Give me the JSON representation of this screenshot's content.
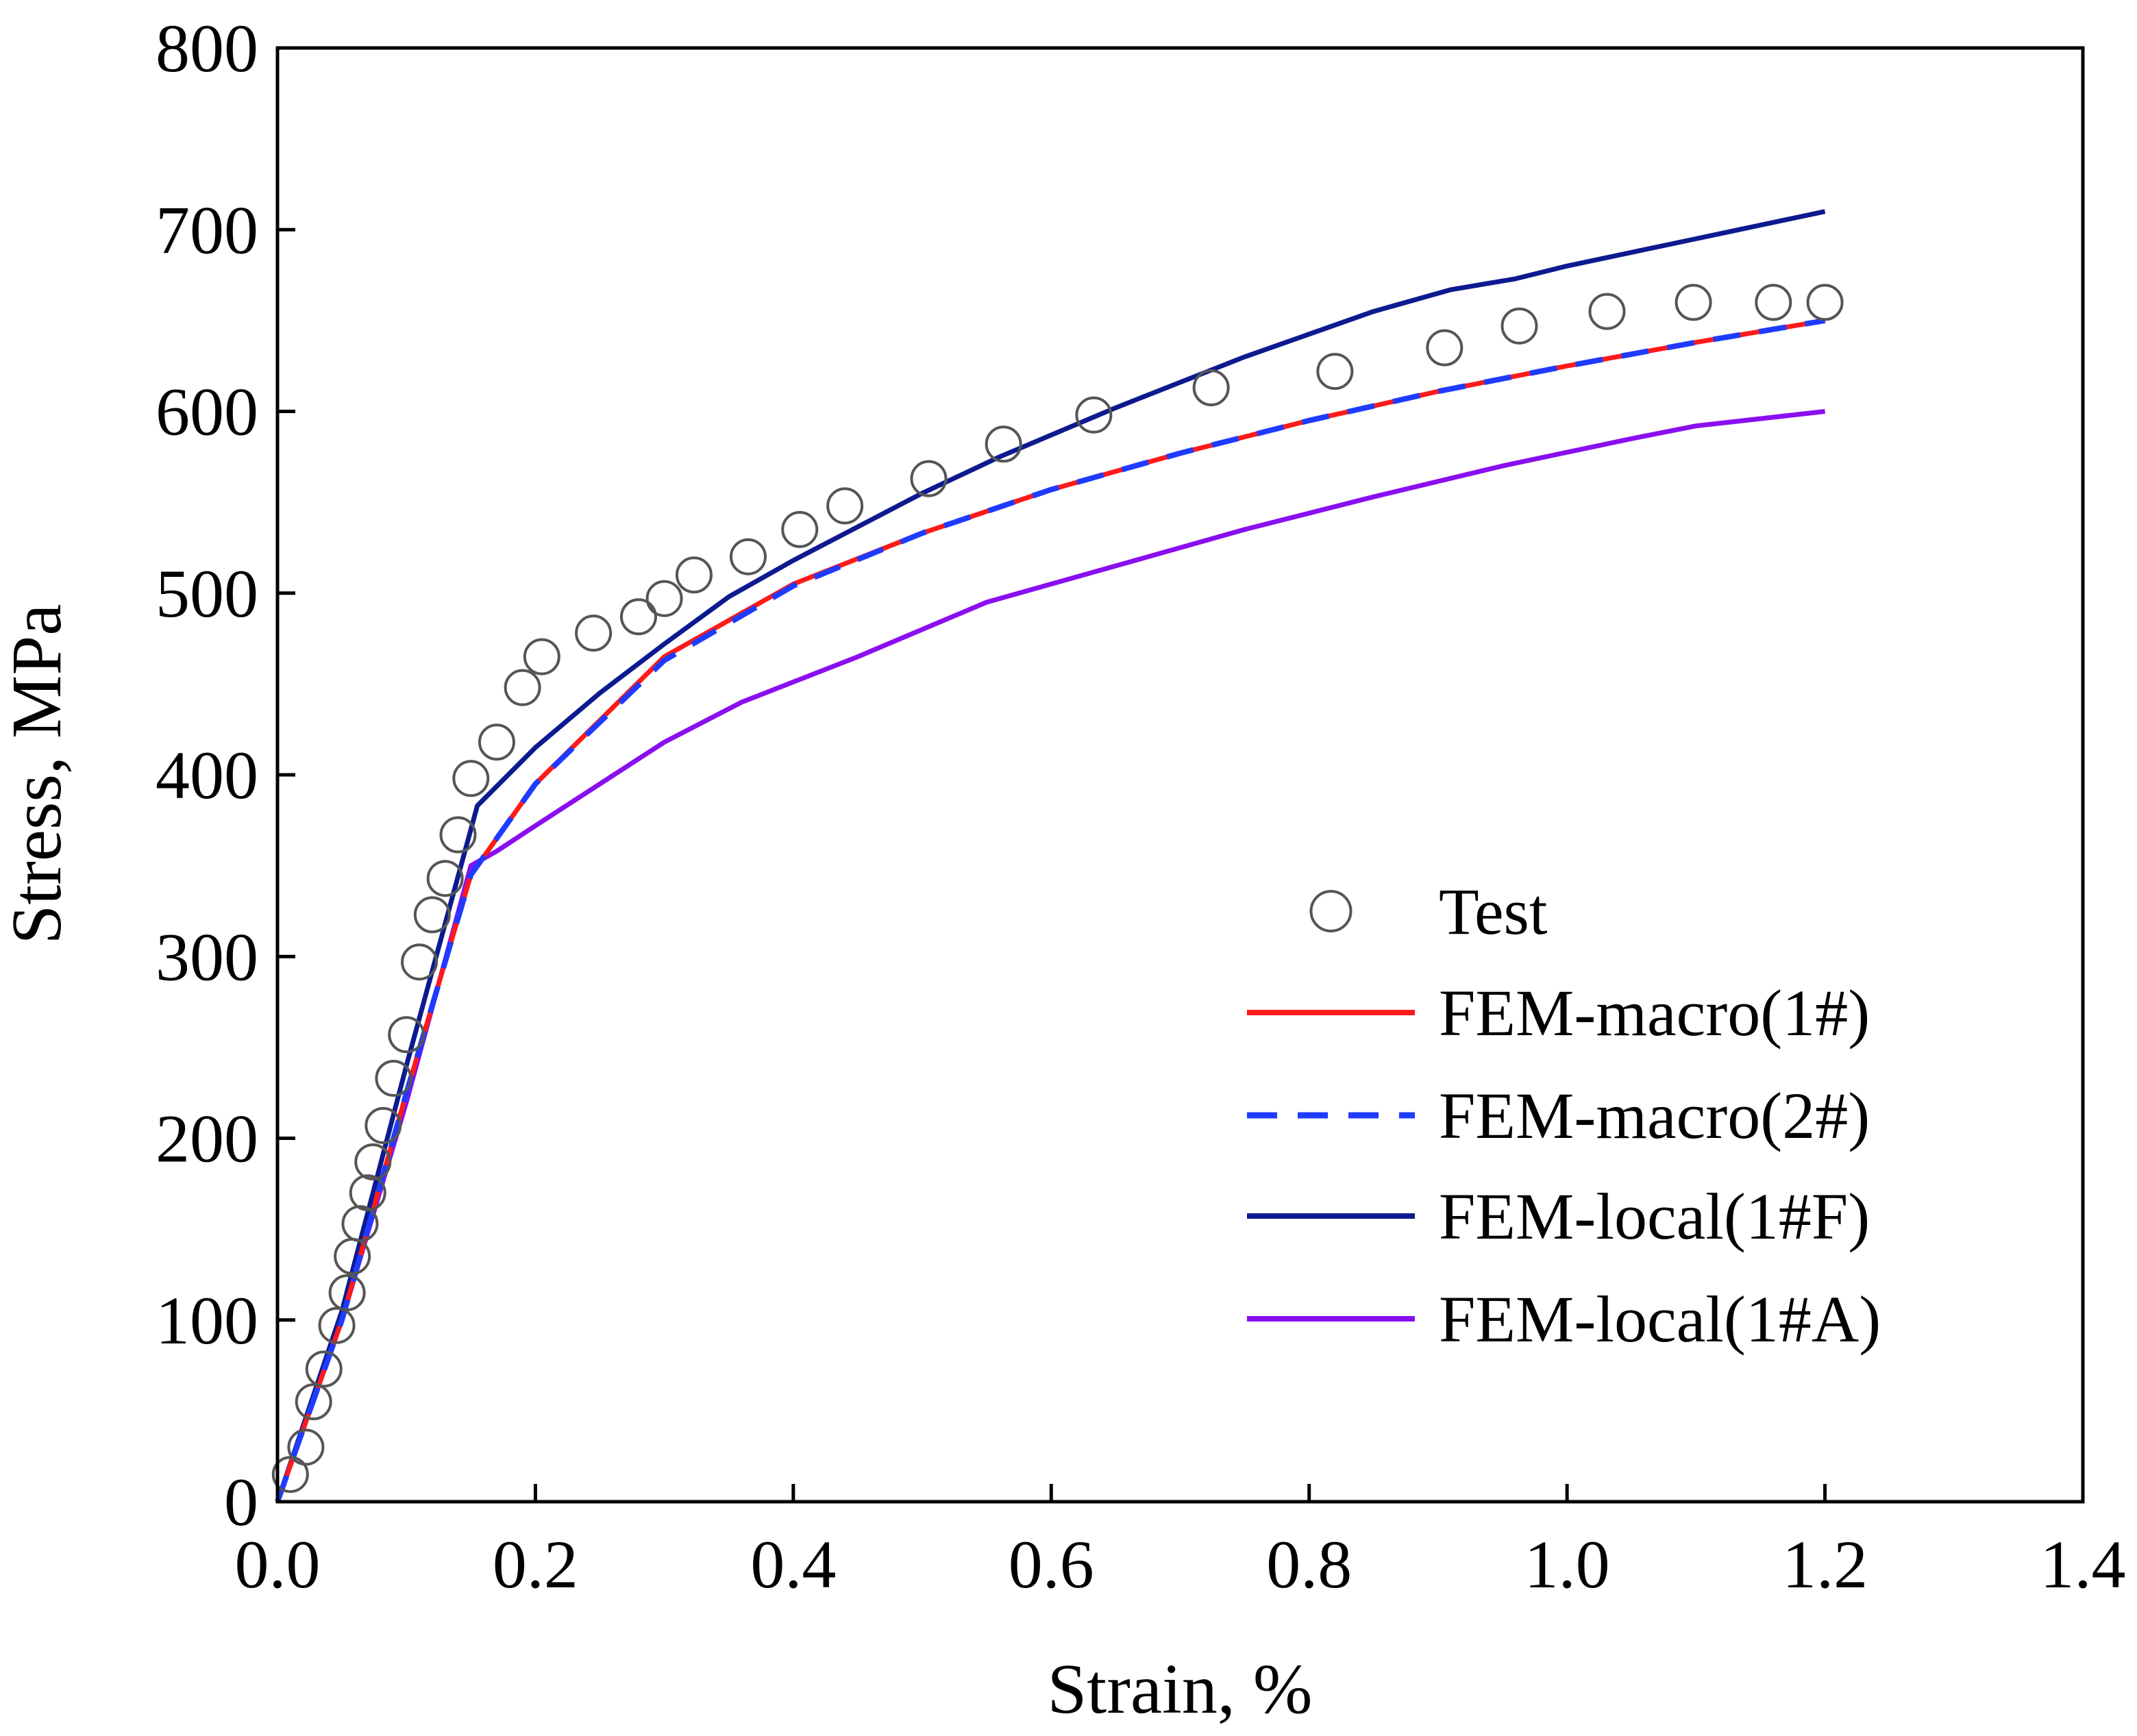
{
  "chart_data": {
    "type": "line",
    "title": "",
    "xlabel": "Strain, %",
    "ylabel": "Stress, MPa",
    "xlim": [
      0.0,
      1.4
    ],
    "ylim": [
      0,
      800
    ],
    "xticks": [
      "0.0",
      "0.2",
      "0.4",
      "0.6",
      "0.8",
      "1.0",
      "1.2",
      "1.4"
    ],
    "yticks": [
      "0",
      "100",
      "200",
      "300",
      "400",
      "500",
      "600",
      "700",
      "800"
    ],
    "grid": false,
    "legend_position": "lower-right",
    "series": [
      {
        "name": "Test",
        "style": "markers",
        "marker": "open-circle",
        "color": "#555555",
        "x": [
          0.01,
          0.022,
          0.028,
          0.036,
          0.046,
          0.054,
          0.058,
          0.064,
          0.07,
          0.074,
          0.082,
          0.09,
          0.1,
          0.11,
          0.12,
          0.13,
          0.14,
          0.15,
          0.17,
          0.19,
          0.205,
          0.245,
          0.28,
          0.3,
          0.323,
          0.365,
          0.405,
          0.44,
          0.505,
          0.563,
          0.633,
          0.724,
          0.82,
          0.905,
          0.963,
          1.031,
          1.098,
          1.16,
          1.2
        ],
        "y": [
          15,
          30,
          55,
          73,
          97,
          115,
          135,
          153,
          170,
          187,
          207,
          233,
          257,
          297,
          323,
          343,
          367,
          398,
          418,
          448,
          465,
          478,
          487,
          497,
          510,
          520,
          535,
          548,
          563,
          582,
          598,
          613,
          622,
          635,
          647,
          655,
          660,
          660,
          660
        ]
      },
      {
        "name": "FEM-macro(1#)",
        "style": "solid",
        "color": "#ff1a1a",
        "x": [
          0,
          0.05,
          0.1,
          0.15,
          0.2,
          0.3,
          0.4,
          0.5,
          0.6,
          0.7,
          0.8,
          0.9,
          1.0,
          1.1,
          1.2
        ],
        "y": [
          0,
          100,
          225,
          345,
          395,
          465,
          505,
          533,
          557,
          577,
          595,
          611,
          625,
          638,
          650
        ]
      },
      {
        "name": "FEM-macro(2#)",
        "style": "dashed",
        "color": "#1f3bff",
        "x": [
          0,
          0.05,
          0.1,
          0.15,
          0.2,
          0.3,
          0.4,
          0.5,
          0.6,
          0.7,
          0.8,
          0.9,
          1.0,
          1.1,
          1.2
        ],
        "y": [
          0,
          100,
          225,
          345,
          395,
          463,
          504,
          533,
          557,
          577,
          595,
          611,
          625,
          638,
          650
        ]
      },
      {
        "name": "FEM-local(1#F)",
        "style": "solid",
        "color": "#0d1a8f",
        "x": [
          0,
          0.05,
          0.1,
          0.155,
          0.2,
          0.25,
          0.3,
          0.35,
          0.4,
          0.5,
          0.56,
          0.65,
          0.75,
          0.85,
          0.91,
          0.96,
          1.0,
          1.1,
          1.2
        ],
        "y": [
          0,
          105,
          240,
          383,
          415,
          445,
          472,
          498,
          518,
          555,
          575,
          602,
          630,
          655,
          667,
          673,
          680,
          695,
          710
        ]
      },
      {
        "name": "FEM-local(1#A)",
        "style": "solid",
        "color": "#8a0ff0",
        "x": [
          0,
          0.05,
          0.1,
          0.15,
          0.17,
          0.2,
          0.25,
          0.3,
          0.36,
          0.45,
          0.55,
          0.65,
          0.75,
          0.85,
          0.95,
          1.05,
          1.1,
          1.2
        ],
        "y": [
          0,
          100,
          220,
          350,
          358,
          372,
          395,
          418,
          440,
          465,
          495,
          515,
          535,
          553,
          570,
          585,
          592,
          600
        ]
      }
    ]
  }
}
